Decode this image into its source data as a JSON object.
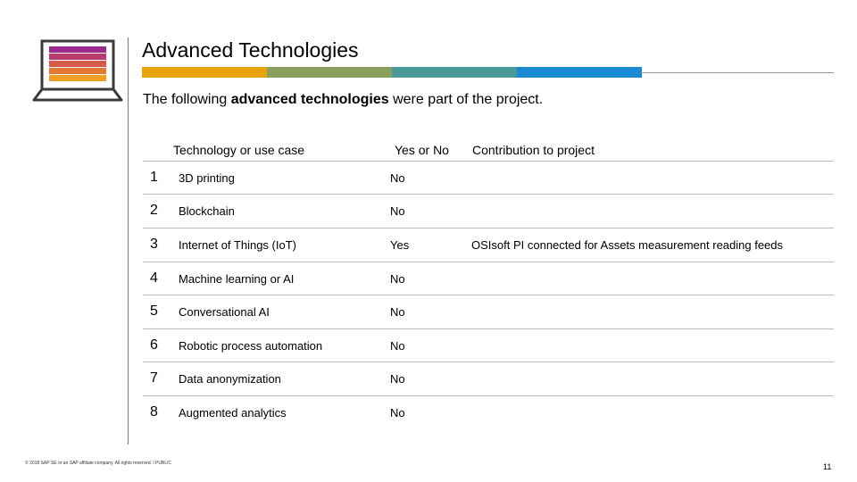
{
  "header": {
    "title": "Advanced Technologies",
    "colors": [
      "#e8a30c",
      "#8aa05a",
      "#4a9a9a",
      "#1a8ad4"
    ]
  },
  "intro": {
    "prefix": "The following ",
    "bold": "advanced technologies",
    "suffix": " were part of the project."
  },
  "table": {
    "columns": {
      "technology": "Technology or use case",
      "yes_no": "Yes or No",
      "contribution": "Contribution to project"
    },
    "rows": [
      {
        "num": "1",
        "technology": "3D printing",
        "yes_no": "No",
        "contribution": ""
      },
      {
        "num": "2",
        "technology": "Blockchain",
        "yes_no": "No",
        "contribution": ""
      },
      {
        "num": "3",
        "technology": "Internet of Things (IoT)",
        "yes_no": "Yes",
        "contribution": "OSIsoft PI connected for Assets measurement reading feeds"
      },
      {
        "num": "4",
        "technology": "Machine learning or AI",
        "yes_no": "No",
        "contribution": ""
      },
      {
        "num": "5",
        "technology": "Conversational AI",
        "yes_no": "No",
        "contribution": ""
      },
      {
        "num": "6",
        "technology": "Robotic process automation",
        "yes_no": "No",
        "contribution": ""
      },
      {
        "num": "7",
        "technology": "Data anonymization",
        "yes_no": "No",
        "contribution": ""
      },
      {
        "num": "8",
        "technology": "Augmented analytics",
        "yes_no": "No",
        "contribution": ""
      }
    ]
  },
  "footer": {
    "copyright": "© 2018 SAP SE or an SAP affiliate company. All rights reserved.  ǀ  PUBLIC",
    "page": "11"
  },
  "icons": {
    "laptop": "laptop-icon",
    "laptop_stripes": [
      "#9b2a8e",
      "#b93a6e",
      "#d55a4a",
      "#e37a33",
      "#eda023"
    ]
  }
}
